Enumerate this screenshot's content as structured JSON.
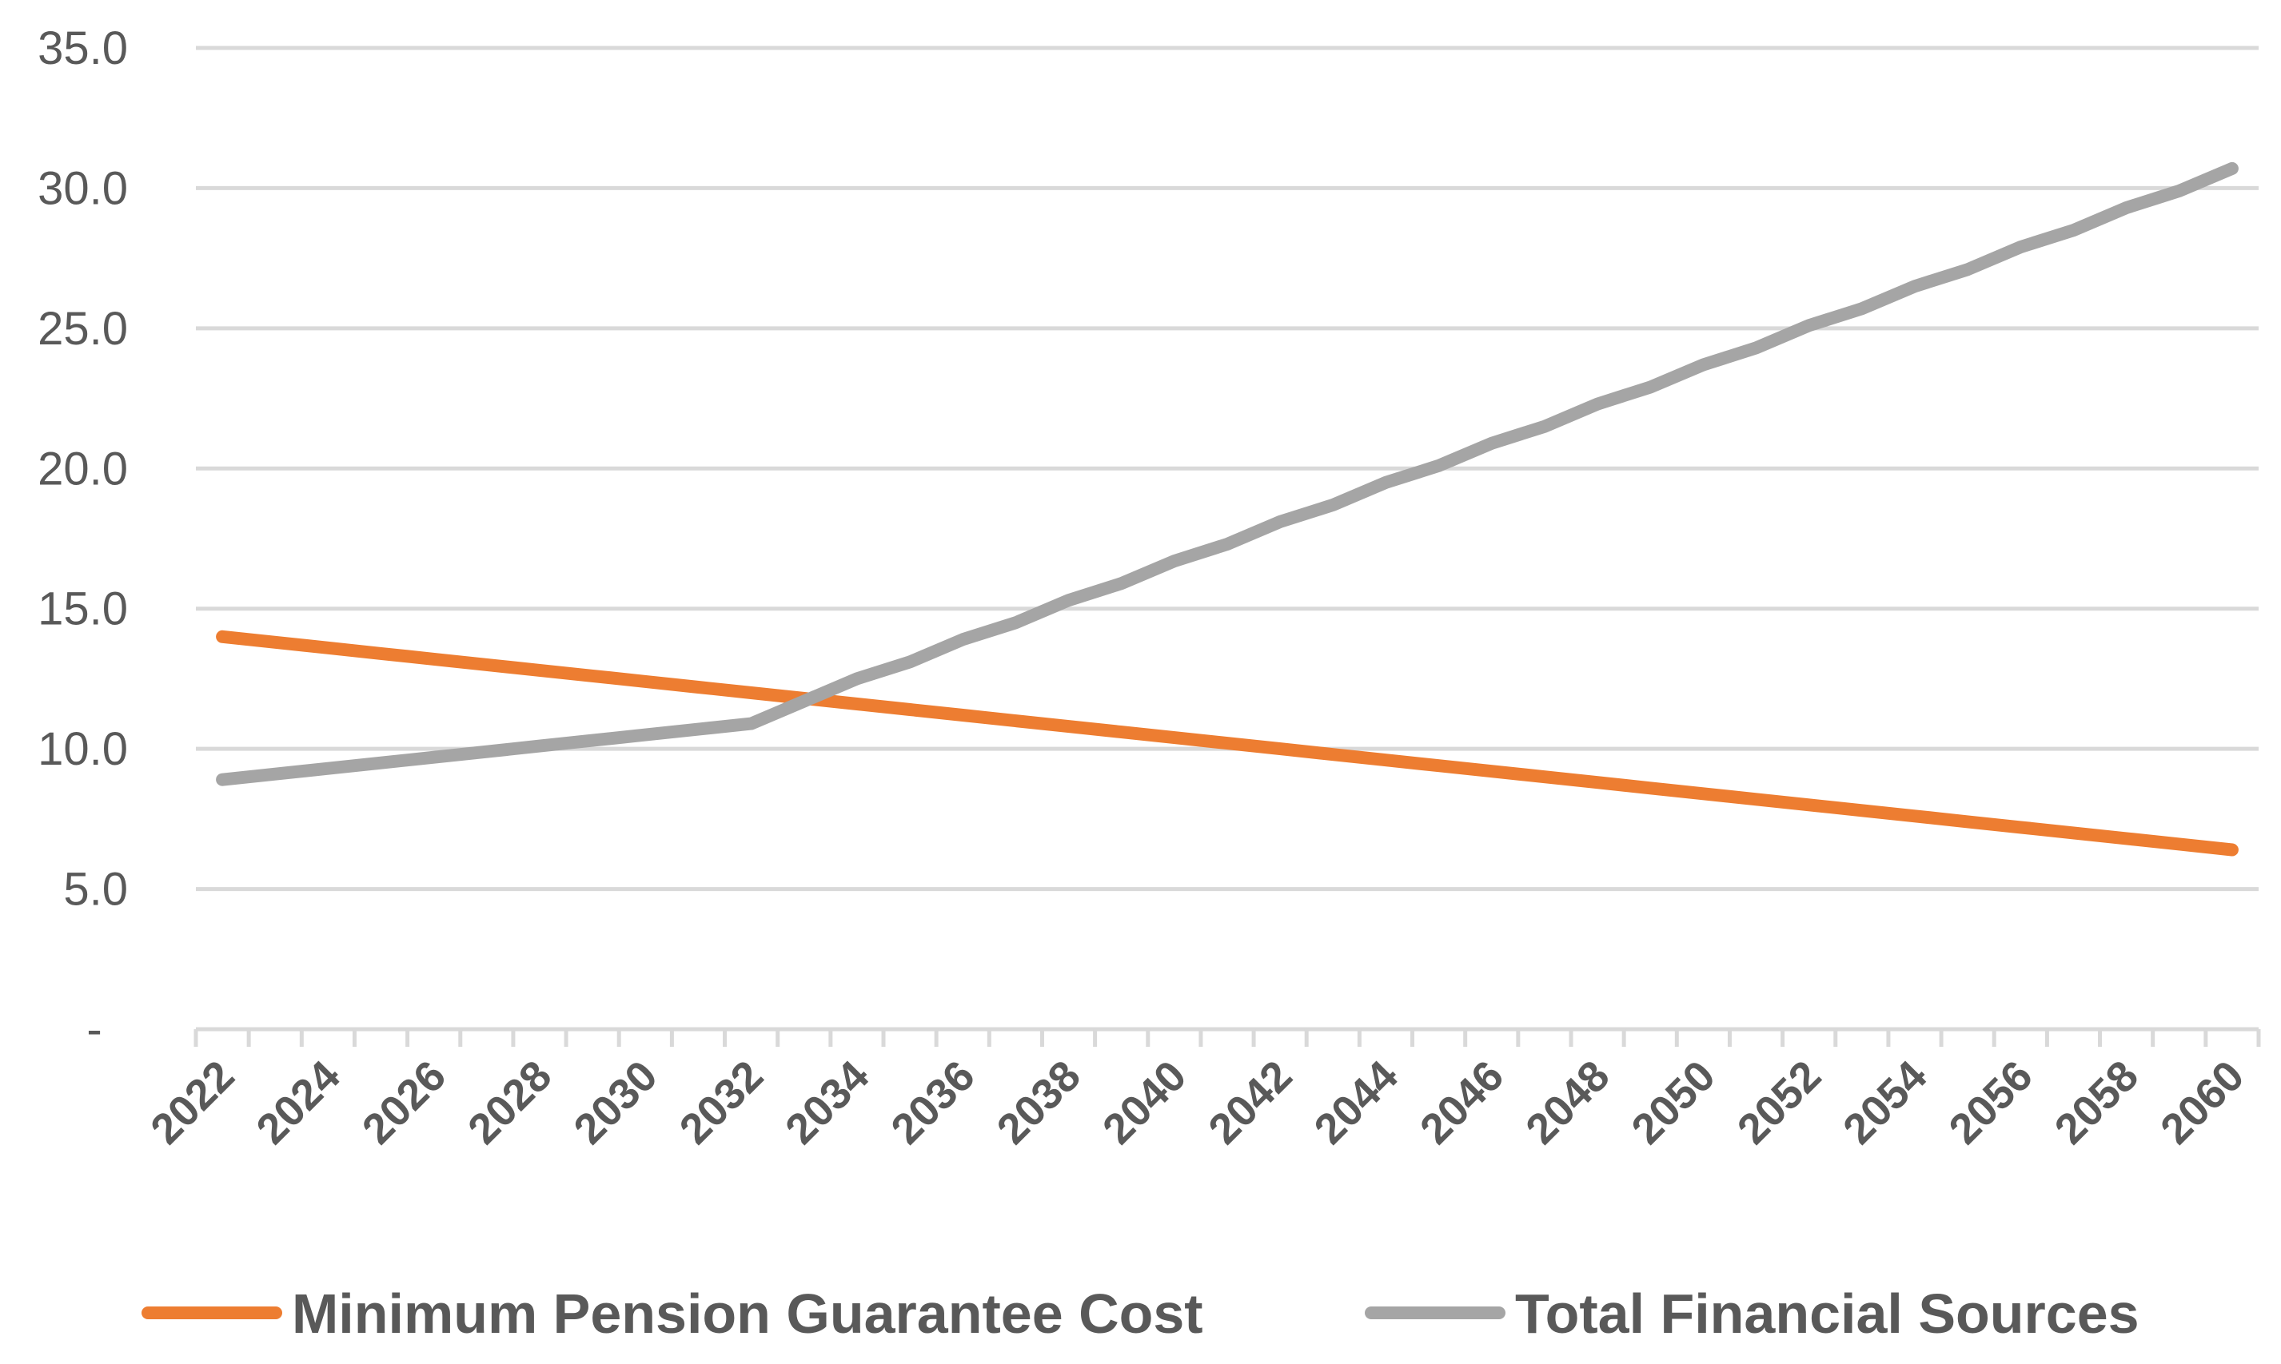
{
  "chart_data": {
    "type": "line",
    "title": "",
    "xlabel": "",
    "ylabel": "",
    "x": [
      2022,
      2023,
      2024,
      2025,
      2026,
      2027,
      2028,
      2029,
      2030,
      2031,
      2032,
      2033,
      2034,
      2035,
      2036,
      2037,
      2038,
      2039,
      2040,
      2041,
      2042,
      2043,
      2044,
      2045,
      2046,
      2047,
      2048,
      2049,
      2050,
      2051,
      2052,
      2053,
      2054,
      2055,
      2056,
      2057,
      2058,
      2059,
      2060
    ],
    "x_tick_labels": [
      "2022",
      "2024",
      "2026",
      "2028",
      "2030",
      "2032",
      "2034",
      "2036",
      "2038",
      "2040",
      "2042",
      "2044",
      "2046",
      "2048",
      "2050",
      "2052",
      "2054",
      "2056",
      "2058",
      "2060"
    ],
    "ylim": [
      0,
      35
    ],
    "y_ticks": [
      0,
      5,
      10,
      15,
      20,
      25,
      30,
      35
    ],
    "y_tick_labels": [
      "-",
      "5.0",
      "10.0",
      "15.0",
      "20.0",
      "25.0",
      "30.0",
      "35.0"
    ],
    "grid": true,
    "legend_position": "bottom",
    "series": [
      {
        "name": "Minimum Pension Guarantee Cost",
        "color": "#ed7d31",
        "values": [
          14.0,
          13.8,
          13.6,
          13.4,
          13.2,
          13.0,
          12.8,
          12.6,
          12.4,
          12.2,
          12.0,
          11.8,
          11.6,
          11.4,
          11.2,
          11.0,
          10.8,
          10.6,
          10.4,
          10.2,
          10.0,
          9.8,
          9.6,
          9.4,
          9.2,
          9.0,
          8.8,
          8.6,
          8.4,
          8.2,
          8.0,
          7.8,
          7.6,
          7.4,
          7.2,
          7.0,
          6.8,
          6.6,
          6.4
        ]
      },
      {
        "name": "Total Financial Sources",
        "color": "#a5a5a5",
        "values": [
          8.9,
          9.1,
          9.3,
          9.5,
          9.7,
          9.9,
          10.1,
          10.3,
          10.5,
          10.7,
          10.9,
          11.7,
          12.5,
          13.1,
          13.9,
          14.5,
          15.3,
          15.9,
          16.7,
          17.3,
          18.1,
          18.7,
          19.5,
          20.1,
          20.9,
          21.5,
          22.3,
          22.9,
          23.7,
          24.3,
          25.1,
          25.7,
          26.5,
          27.1,
          27.9,
          28.5,
          29.3,
          29.9,
          30.7
        ]
      }
    ]
  }
}
